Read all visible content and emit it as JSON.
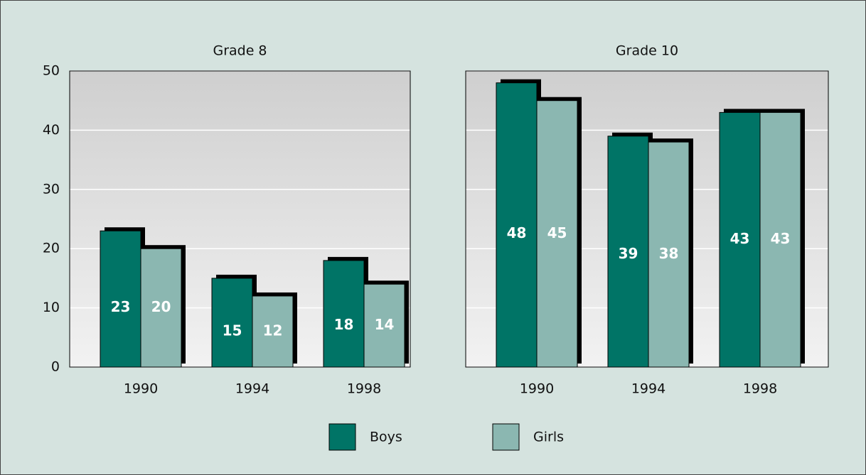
{
  "chart_data": [
    {
      "type": "bar",
      "title": "Grade 8",
      "categories": [
        "1990",
        "1994",
        "1998"
      ],
      "series": [
        {
          "name": "Boys",
          "color": "#007466",
          "values": [
            23,
            15,
            18
          ]
        },
        {
          "name": "Girls",
          "color": "#8bb7b1",
          "values": [
            20,
            12,
            14
          ]
        }
      ],
      "ylim": [
        0,
        50
      ],
      "yticks": [
        0,
        10,
        20,
        30,
        40,
        50
      ],
      "grid": true
    },
    {
      "type": "bar",
      "title": "Grade 10",
      "categories": [
        "1990",
        "1994",
        "1998"
      ],
      "series": [
        {
          "name": "Boys",
          "color": "#007466",
          "values": [
            48,
            39,
            43
          ]
        },
        {
          "name": "Girls",
          "color": "#8bb7b1",
          "values": [
            45,
            38,
            43
          ]
        }
      ],
      "ylim": [
        0,
        50
      ],
      "yticks": [
        0,
        10,
        20,
        30,
        40,
        50
      ],
      "grid": true
    }
  ]
}
